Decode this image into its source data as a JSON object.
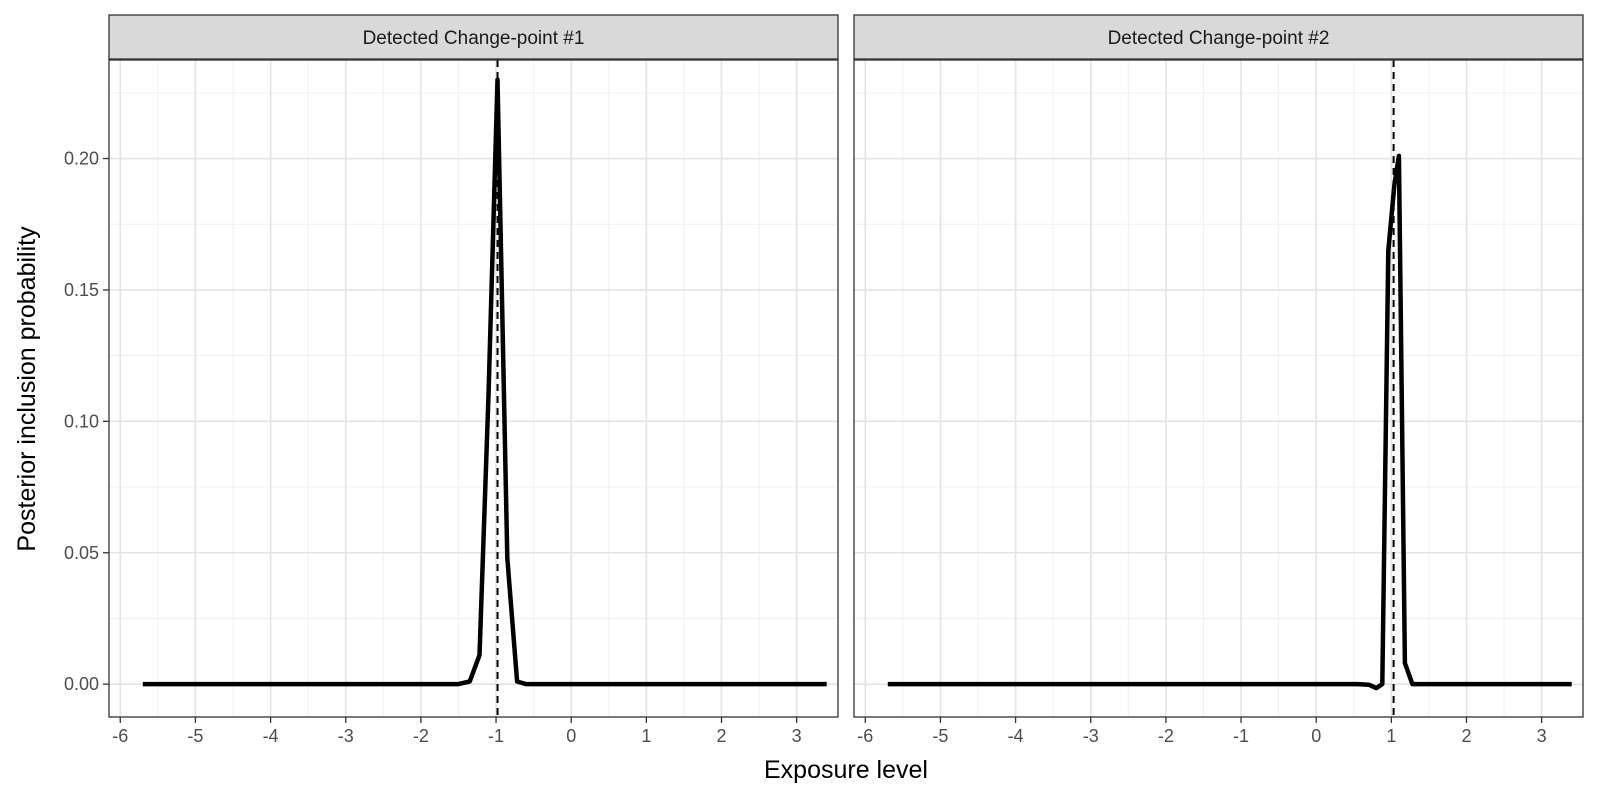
{
  "chart_data": {
    "type": "line",
    "xlabel": "Exposure level",
    "ylabel": "Posterior inclusion probability",
    "xlim": [
      -6.15,
      3.55
    ],
    "ylim": [
      -0.0125,
      0.2375
    ],
    "x_ticks": [
      -6,
      -5,
      -4,
      -3,
      -2,
      -1,
      0,
      1,
      2,
      3
    ],
    "y_ticks": [
      0.0,
      0.05,
      0.1,
      0.15,
      0.2
    ],
    "y_tick_labels": [
      "0.00",
      "0.05",
      "0.10",
      "0.15",
      "0.20"
    ],
    "grid": true,
    "panels": [
      {
        "strip": "Detected Change-point #1",
        "reference_line_x": -0.98,
        "x": [
          -5.7,
          -1.5,
          -1.35,
          -1.22,
          -1.1,
          -0.98,
          -0.85,
          -0.72,
          -0.6,
          -0.45,
          3.4
        ],
        "y": [
          0.0,
          0.0,
          0.001,
          0.011,
          0.11,
          0.23,
          0.048,
          0.001,
          0.0,
          0.0,
          0.0
        ]
      },
      {
        "strip": "Detected Change-point #2",
        "reference_line_x": 1.03,
        "x": [
          -5.7,
          0.55,
          0.7,
          0.8,
          0.88,
          0.96,
          1.04,
          1.1,
          1.18,
          1.28,
          1.4,
          3.4
        ],
        "y": [
          0.0,
          0.0,
          -0.0002,
          -0.0015,
          0.0,
          0.165,
          0.19,
          0.201,
          0.008,
          0.0,
          0.0,
          0.0
        ]
      }
    ]
  }
}
